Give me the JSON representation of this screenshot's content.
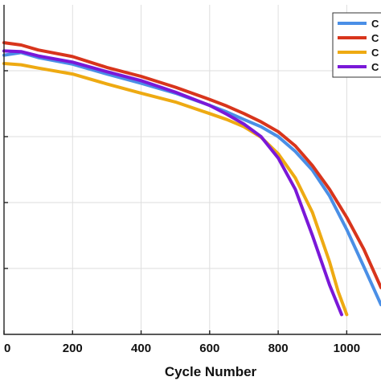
{
  "chart_data": {
    "type": "line",
    "xlabel": "Cycle Number",
    "ylabel": "",
    "title": "",
    "xlim": [
      0,
      1100
    ],
    "ylim": [
      0,
      1
    ],
    "x_ticks": [
      0,
      200,
      400,
      600,
      800,
      1000
    ],
    "x_tick_labels": [
      "0",
      "200",
      "400",
      "600",
      "800",
      "1000"
    ],
    "y_ticks": [
      0.2,
      0.4,
      0.6,
      0.8
    ],
    "grid": true,
    "legend": {
      "placement": "top-right",
      "entries": [
        "C",
        "C",
        "C",
        "C"
      ]
    },
    "series": [
      {
        "color": "#4a8fe6",
        "x": [
          0,
          50,
          100,
          200,
          300,
          400,
          500,
          600,
          650,
          700,
          750,
          800,
          850,
          900,
          950,
          1000,
          1050,
          1100
        ],
        "y": [
          0.847,
          0.855,
          0.84,
          0.82,
          0.79,
          0.762,
          0.732,
          0.695,
          0.675,
          0.652,
          0.63,
          0.6,
          0.555,
          0.498,
          0.42,
          0.318,
          0.205,
          0.09
        ]
      },
      {
        "color": "#d8351c",
        "x": [
          0,
          50,
          100,
          200,
          300,
          400,
          500,
          600,
          650,
          700,
          750,
          800,
          850,
          900,
          950,
          1000,
          1050,
          1100
        ],
        "y": [
          0.885,
          0.878,
          0.863,
          0.843,
          0.81,
          0.783,
          0.75,
          0.713,
          0.693,
          0.67,
          0.645,
          0.615,
          0.572,
          0.512,
          0.44,
          0.355,
          0.258,
          0.142
        ]
      },
      {
        "color": "#eeaa12",
        "x": [
          0,
          50,
          100,
          200,
          300,
          400,
          500,
          600,
          650,
          700,
          750,
          800,
          850,
          900,
          950,
          975,
          1000
        ],
        "y": [
          0.822,
          0.818,
          0.808,
          0.79,
          0.76,
          0.732,
          0.705,
          0.67,
          0.652,
          0.63,
          0.598,
          0.548,
          0.475,
          0.37,
          0.22,
          0.13,
          0.06
        ]
      },
      {
        "color": "#7a18d8",
        "x": [
          0,
          50,
          100,
          200,
          300,
          400,
          500,
          600,
          650,
          700,
          750,
          800,
          850,
          900,
          950,
          985
        ],
        "y": [
          0.86,
          0.858,
          0.845,
          0.826,
          0.797,
          0.77,
          0.735,
          0.695,
          0.668,
          0.638,
          0.6,
          0.535,
          0.44,
          0.3,
          0.15,
          0.06
        ]
      }
    ]
  }
}
